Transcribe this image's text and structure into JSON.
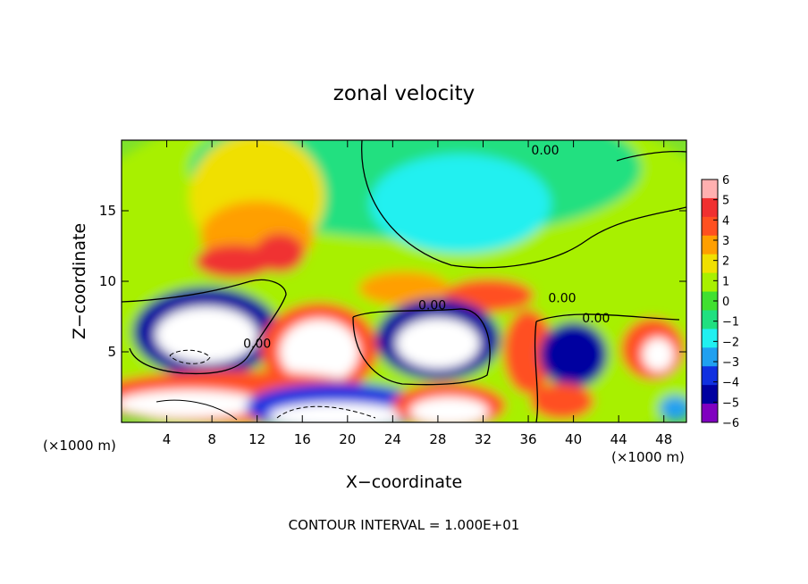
{
  "chart_data": {
    "type": "heatmap",
    "title": "zonal velocity",
    "xlabel": "X−coordinate",
    "ylabel": "Z−coordinate",
    "x_unit_label": "(×1000 m)",
    "y_unit_label": "(×1000 m)",
    "footer": "CONTOUR INTERVAL = 1.000E+01",
    "xlim": [
      0,
      50
    ],
    "ylim": [
      0,
      20
    ],
    "x_ticks": [
      4,
      8,
      12,
      16,
      20,
      24,
      28,
      32,
      36,
      40,
      44,
      48
    ],
    "x_tick_labels": [
      "4",
      "8",
      "12",
      "16",
      "20",
      "24",
      "28",
      "32",
      "36",
      "40",
      "44",
      "48"
    ],
    "y_ticks": [
      5,
      10,
      15
    ],
    "y_tick_labels": [
      "5",
      "10",
      "15"
    ],
    "colorbar": {
      "min": -6,
      "max": 6,
      "tick_labels": [
        "6",
        "5",
        "4",
        "3",
        "2",
        "1",
        "0",
        "−1",
        "−2",
        "−3",
        "−4",
        "−5",
        "−6"
      ],
      "colors": [
        "#ffb0b0",
        "#f03030",
        "#ff5020",
        "#ff9f00",
        "#f0e000",
        "#a8f000",
        "#40e030",
        "#20e080",
        "#20f0f0",
        "#20a0f0",
        "#1030e0",
        "#0000a0",
        "#8000c0"
      ],
      "below_min_color": "#ffffff"
    },
    "contour_labels": [
      {
        "text": "0.00",
        "x": 37.5,
        "y": 19.0
      },
      {
        "text": "0.00",
        "x": 27.5,
        "y": 8.0
      },
      {
        "text": "0.00",
        "x": 39.0,
        "y": 8.5
      },
      {
        "text": "0.00",
        "x": 42.0,
        "y": 7.1
      },
      {
        "text": "0.00",
        "x": 12.0,
        "y": 5.3
      }
    ],
    "regions": [
      {
        "value": 0.8,
        "x": 25,
        "y": 10,
        "rx": 32,
        "ry": 14
      },
      {
        "value": -1.0,
        "x": 26,
        "y": 18,
        "rx": 20,
        "ry": 5
      },
      {
        "value": -2.0,
        "x": 30,
        "y": 15.5,
        "rx": 8,
        "ry": 3.5
      },
      {
        "value": 2.0,
        "x": 12,
        "y": 16,
        "rx": 6,
        "ry": 4.5
      },
      {
        "value": 3.0,
        "x": 12,
        "y": 13.2,
        "rx": 5,
        "ry": 2.5
      },
      {
        "value": 5.0,
        "x": 10,
        "y": 11.4,
        "rx": 3.5,
        "ry": 1.2
      },
      {
        "value": 5.0,
        "x": 14,
        "y": 12.0,
        "rx": 2.2,
        "ry": 1.4
      },
      {
        "value": 3.0,
        "x": 25,
        "y": 9.5,
        "rx": 4,
        "ry": 1.2
      },
      {
        "value": 4.0,
        "x": 32.5,
        "y": 9.0,
        "rx": 4,
        "ry": 1.2
      },
      {
        "value": -4.5,
        "x": 7.5,
        "y": 6.4,
        "rx": 6.5,
        "ry": 3.2
      },
      {
        "value": -7.0,
        "x": 7.5,
        "y": 6.2,
        "rx": 4.5,
        "ry": 2.0
      },
      {
        "value": 4.5,
        "x": 17.5,
        "y": 5.2,
        "rx": 5.2,
        "ry": 3.3
      },
      {
        "value": 7.0,
        "x": 17.5,
        "y": 5.0,
        "rx": 3.5,
        "ry": 2.3
      },
      {
        "value": -4.5,
        "x": 28.0,
        "y": 5.9,
        "rx": 5.5,
        "ry": 2.9
      },
      {
        "value": -7.0,
        "x": 28.0,
        "y": 5.6,
        "rx": 3.7,
        "ry": 1.8
      },
      {
        "value": 4.0,
        "x": 36.0,
        "y": 5.0,
        "rx": 2.2,
        "ry": 3.0
      },
      {
        "value": -4.5,
        "x": 40.0,
        "y": 4.8,
        "rx": 3.0,
        "ry": 2.3
      },
      {
        "value": 4.5,
        "x": 47.0,
        "y": 5.2,
        "rx": 2.8,
        "ry": 2.2
      },
      {
        "value": 7.0,
        "x": 47.5,
        "y": 4.8,
        "rx": 1.4,
        "ry": 1.2
      },
      {
        "value": 4.5,
        "x": 10.0,
        "y": 1.8,
        "rx": 13.0,
        "ry": 1.9
      },
      {
        "value": 7.0,
        "x": 6.0,
        "y": 1.3,
        "rx": 6.5,
        "ry": 1.0
      },
      {
        "value": -4.0,
        "x": 19.0,
        "y": 1.1,
        "rx": 8.0,
        "ry": 1.7
      },
      {
        "value": -7.0,
        "x": 19.0,
        "y": 0.5,
        "rx": 6.0,
        "ry": 0.9
      },
      {
        "value": 4.0,
        "x": 29.0,
        "y": 1.2,
        "rx": 5.0,
        "ry": 1.6
      },
      {
        "value": 7.0,
        "x": 29.0,
        "y": 0.8,
        "rx": 3.5,
        "ry": 1.0
      },
      {
        "value": 4.0,
        "x": 39.0,
        "y": 1.5,
        "rx": 2.8,
        "ry": 1.3
      },
      {
        "value": -3.0,
        "x": 49.0,
        "y": 1.0,
        "rx": 1.4,
        "ry": 0.9
      }
    ]
  }
}
